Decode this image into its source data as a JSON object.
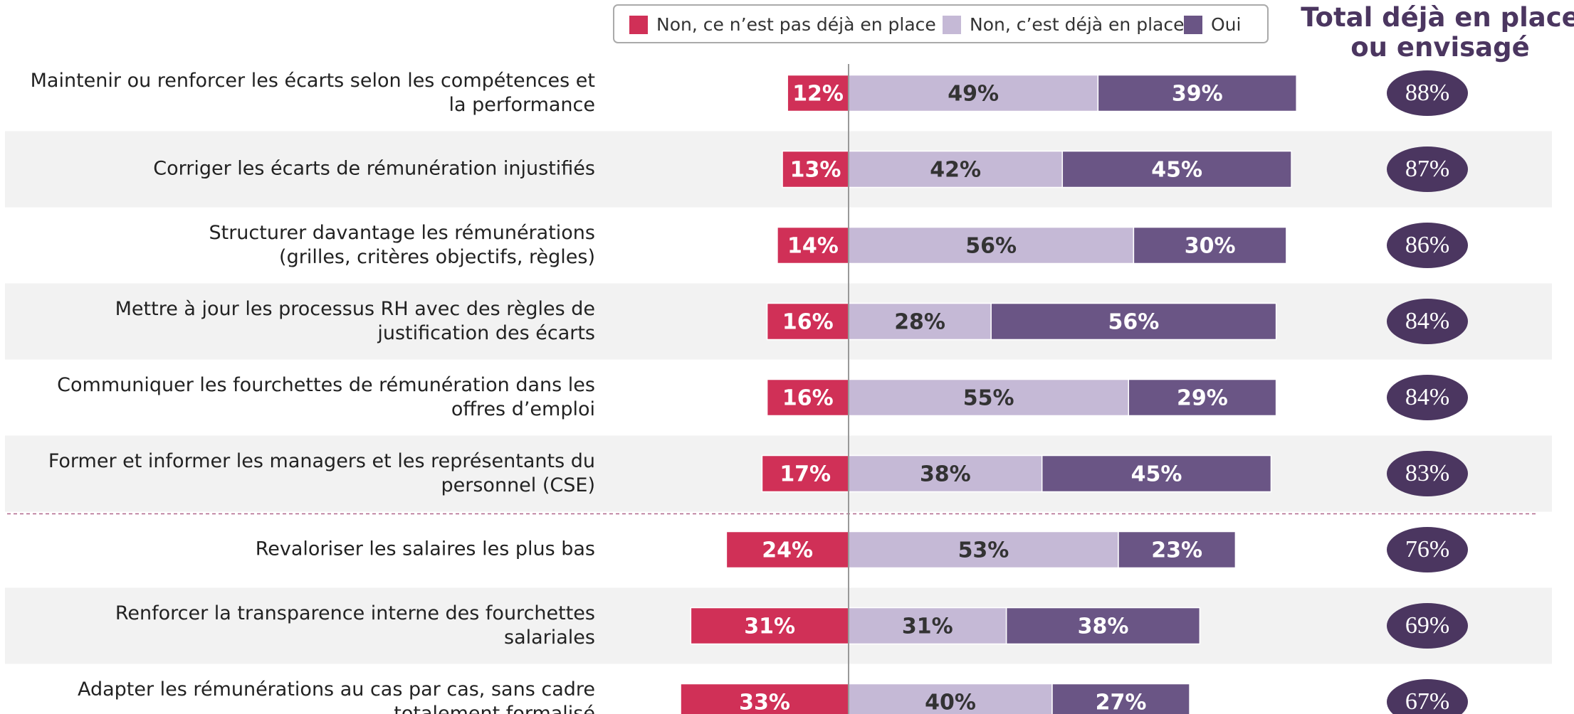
{
  "chart_data": {
    "type": "diverging-stacked-bar",
    "categories": [
      "Maintenir ou renforcer les écarts selon les compétences et\nla performance",
      "Corriger les écarts de rémunération injustifiés",
      "Structurer davantage les rémunérations\n(grilles, critères objectifs, règles)",
      "Mettre à jour les processus RH avec des règles de\njustification des écarts",
      "Communiquer les fourchettes de rémunération dans les\noffres d’emploi",
      "Former et informer les managers et les représentants du\npersonnel (CSE)",
      "Revaloriser les salaires les plus bas",
      "Renforcer la transparence interne des fourchettes\nsalariales",
      "Adapter les rémunérations au cas par cas, sans cadre\ntotalement formalisé"
    ],
    "series": [
      {
        "name": "Non, ce n’est pas déjà en place",
        "color": "#d03057",
        "values": [
          12,
          13,
          14,
          16,
          16,
          17,
          24,
          31,
          33
        ],
        "value_labels": [
          "12%",
          "13%",
          "14%",
          "16%",
          "16%",
          "17%",
          "24%",
          "31%",
          "33%"
        ]
      },
      {
        "name": "Non, c’est déjà en place",
        "color": "#c5b9d6",
        "values": [
          49,
          42,
          56,
          28,
          55,
          38,
          53,
          31,
          40
        ],
        "value_labels": [
          "49%",
          "42%",
          "56%",
          "28%",
          "55%",
          "38%",
          "53%",
          "31%",
          "40%"
        ]
      },
      {
        "name": "Oui",
        "color": "#6a5585",
        "values": [
          39,
          45,
          30,
          56,
          29,
          45,
          23,
          38,
          27
        ],
        "value_labels": [
          "39%",
          "45%",
          "30%",
          "56%",
          "29%",
          "45%",
          "23%",
          "38%",
          "27%"
        ]
      }
    ],
    "totals": {
      "title": "Total déjà en place\nou envisagé",
      "color": "#4b3660",
      "values": [
        88,
        87,
        86,
        84,
        84,
        83,
        76,
        69,
        67
      ],
      "value_labels": [
        "88%",
        "87%",
        "86%",
        "84%",
        "84%",
        "83%",
        "76%",
        "69%",
        "67%"
      ]
    }
  }
}
